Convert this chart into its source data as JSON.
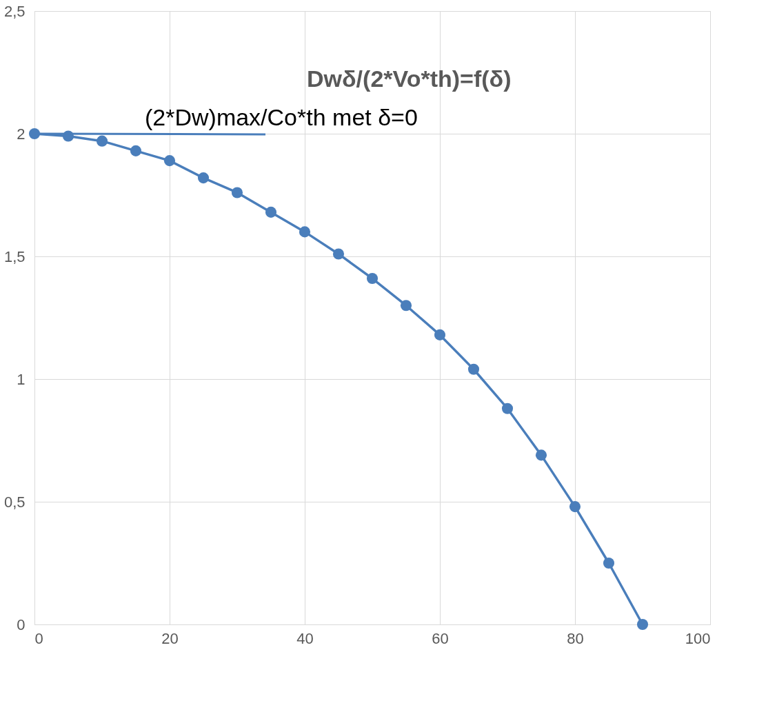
{
  "chart_data": {
    "type": "line",
    "title": "Dwδ/(2*Vo*th)=f(δ)",
    "x": [
      0,
      5,
      10,
      15,
      20,
      25,
      30,
      35,
      40,
      45,
      50,
      55,
      60,
      65,
      70,
      75,
      80,
      85,
      90
    ],
    "series": [
      {
        "color": "#4a7ebb",
        "values": [
          2.0,
          1.99,
          1.97,
          1.93,
          1.89,
          1.82,
          1.76,
          1.68,
          1.6,
          1.51,
          1.41,
          1.3,
          1.18,
          1.04,
          0.88,
          0.69,
          0.48,
          0.25,
          0.0
        ]
      }
    ],
    "annotations": [
      {
        "text": "(2*Dw)max/Co*th  met δ=0",
        "x": 0,
        "y": 2
      }
    ],
    "xlim": [
      0,
      100
    ],
    "xticks": [
      0,
      20,
      40,
      60,
      80,
      100
    ],
    "ylim": [
      0,
      2.5
    ],
    "yticks": [
      0,
      {
        "value": 0.5,
        "label": "0,5"
      },
      1,
      {
        "value": 1.5,
        "label": "1,5"
      },
      2,
      {
        "value": 2.5,
        "label": "2,5"
      }
    ],
    "grid": true,
    "marker": "circle",
    "line_style": "solid"
  }
}
